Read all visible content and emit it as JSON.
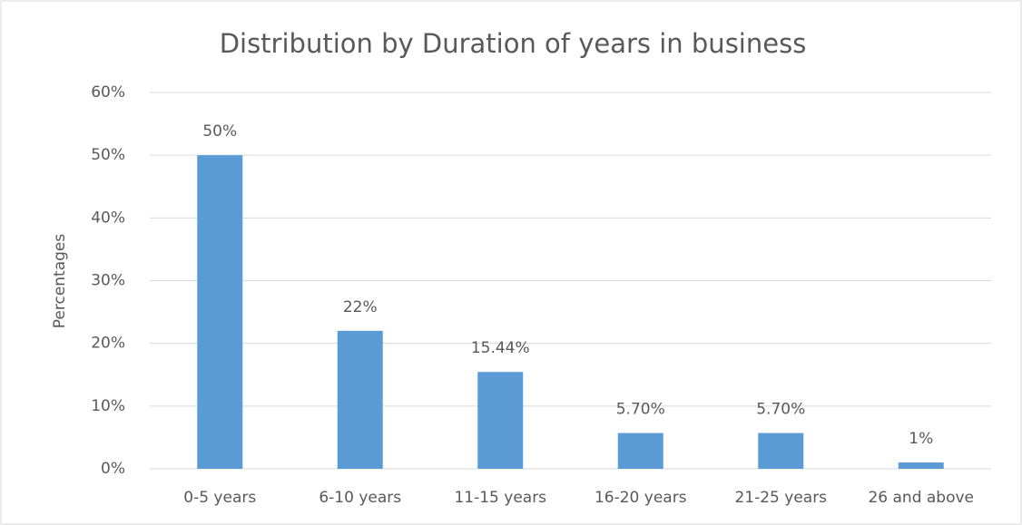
{
  "chart_data": {
    "type": "bar",
    "title": "Distribution by Duration of years in business",
    "y_label": "Percentages",
    "categories": [
      "0-5 years",
      "6-10 years",
      "11-15 years",
      "16-20 years",
      "21-25 years",
      "26 and above"
    ],
    "values": [
      50,
      22,
      15.44,
      5.7,
      5.7,
      1
    ],
    "value_labels": [
      "50%",
      "22%",
      "15.44%",
      "5.70%",
      "5.70%",
      "1%"
    ],
    "color": "#5b9bd5",
    "ylim": [
      0,
      60
    ],
    "yticks": [
      {
        "value": 0,
        "label": "0%"
      },
      {
        "value": 10,
        "label": "10%"
      },
      {
        "value": 20,
        "label": "20%"
      },
      {
        "value": 30,
        "label": "30%"
      },
      {
        "value": 40,
        "label": "40%"
      },
      {
        "value": 50,
        "label": "50%"
      },
      {
        "value": 60,
        "label": "60%"
      }
    ],
    "grid": true
  }
}
